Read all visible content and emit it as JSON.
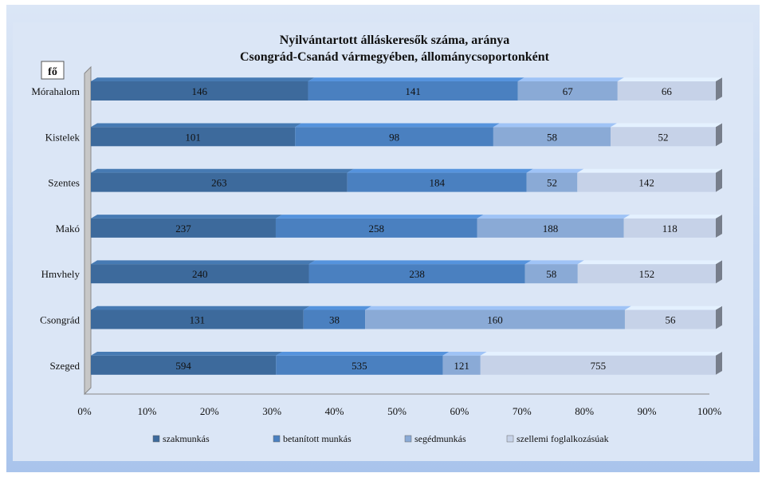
{
  "chart_data": {
    "type": "bar",
    "orientation": "horizontal",
    "stacked": "percent",
    "title": "Nyilvántartott  álláskeresők száma, aránya",
    "subtitle": "Csongrád-Csanád  vármegyében, állománycsoportonként",
    "unit_label": "fő",
    "categories": [
      "Mórahalom",
      "Kistelek",
      "Szentes",
      "Makó",
      "Hmvhely",
      "Csongrád",
      "Szeged"
    ],
    "series": [
      {
        "name": "szakmunkás",
        "color": "#3d6a9c",
        "values": [
          146,
          101,
          263,
          237,
          240,
          131,
          594
        ]
      },
      {
        "name": "betanított munkás",
        "color": "#4a80c0",
        "values": [
          141,
          98,
          184,
          258,
          238,
          38,
          535
        ]
      },
      {
        "name": "segédmunkás",
        "color": "#8aaad6",
        "values": [
          67,
          58,
          52,
          188,
          58,
          160,
          121
        ]
      },
      {
        "name": "szellemi foglalkozásúak",
        "color": "#c6d2e8",
        "values": [
          66,
          52,
          142,
          118,
          152,
          56,
          755
        ]
      }
    ],
    "xticks": [
      "0%",
      "10%",
      "20%",
      "30%",
      "40%",
      "50%",
      "60%",
      "70%",
      "80%",
      "90%",
      "100%"
    ],
    "xlim": [
      0,
      100
    ],
    "grid": false,
    "legend_position": "bottom"
  },
  "colors": {
    "frame_outer": "#a9c4ec",
    "frame_inner": "#dbe6f6",
    "plot_bg": "#ffffff",
    "wall": "#c7c7c7"
  }
}
